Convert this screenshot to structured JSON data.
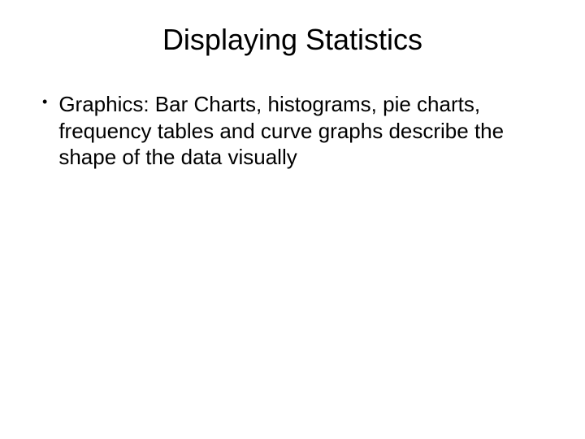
{
  "slide": {
    "title": "Displaying Statistics",
    "bullets": [
      {
        "text": "Graphics: Bar Charts, histograms, pie charts, frequency tables and curve graphs describe the shape of the data visually"
      }
    ],
    "title_fontsize": 36,
    "body_fontsize": 26,
    "background_color": "#ffffff",
    "text_color": "#000000",
    "font_family": "Arial"
  }
}
